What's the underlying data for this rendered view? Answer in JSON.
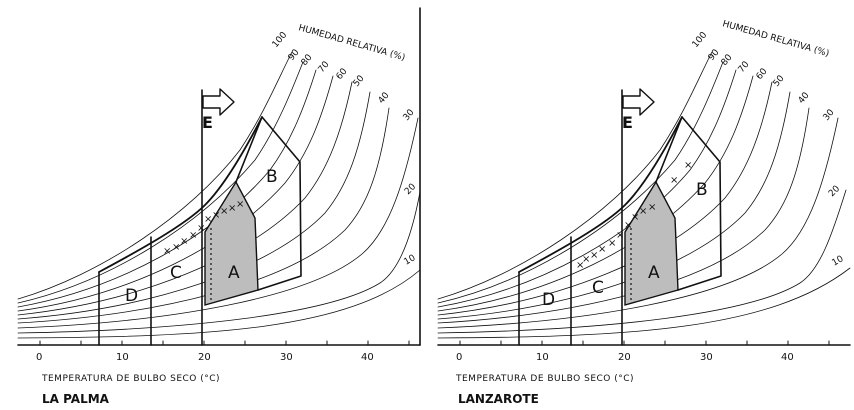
{
  "panels": [
    {
      "id": "la-palma",
      "name": "LA PALMA",
      "x_axis_label": "TEMPERATURA DE BULBO SECO (°C)",
      "x_ticks": [
        "0",
        "10",
        "20",
        "30",
        "40"
      ],
      "rh_title": "HUMEDAD RELATIVA (%)",
      "rh_labels": [
        "100",
        "90",
        "80",
        "70",
        "60",
        "50",
        "40",
        "30",
        "20",
        "10"
      ],
      "zone_labels": {
        "A": "A",
        "B": "B",
        "C": "C",
        "D": "D"
      },
      "arrow_label": "E"
    },
    {
      "id": "lanzarote",
      "name": "LANZAROTE",
      "x_axis_label": "TEMPERATURA DE BULBO SECO (°C)",
      "x_ticks": [
        "0",
        "10",
        "20",
        "30",
        "40"
      ],
      "rh_title": "HUMEDAD RELATIVA (%)",
      "rh_labels": [
        "100",
        "90",
        "80",
        "70",
        "60",
        "50",
        "40",
        "30",
        "20",
        "10"
      ],
      "zone_labels": {
        "A": "A",
        "B": "B",
        "C": "C",
        "D": "D"
      },
      "arrow_label": "E"
    }
  ],
  "colors": {
    "ink": "#111111",
    "zone_a_fill": "#bdbdbd",
    "paper": "#ffffff"
  }
}
